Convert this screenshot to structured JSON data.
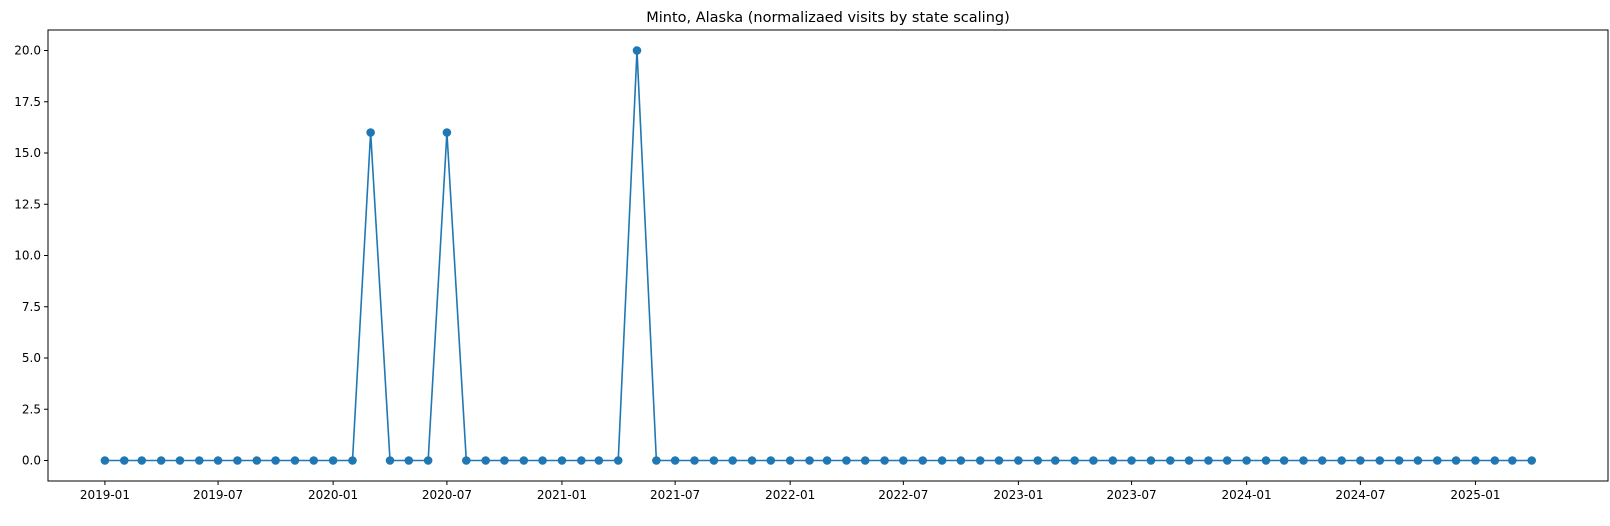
{
  "chart_data": {
    "type": "line",
    "title": "Minto, Alaska (normalizaed visits by state scaling)",
    "xlabel": "",
    "ylabel": "",
    "x": [
      "2019-01",
      "2019-02",
      "2019-03",
      "2019-04",
      "2019-05",
      "2019-06",
      "2019-07",
      "2019-08",
      "2019-09",
      "2019-10",
      "2019-11",
      "2019-12",
      "2020-01",
      "2020-02",
      "2020-03",
      "2020-04",
      "2020-05",
      "2020-06",
      "2020-07",
      "2020-08",
      "2020-09",
      "2020-10",
      "2020-11",
      "2020-12",
      "2021-01",
      "2021-02",
      "2021-03",
      "2021-04",
      "2021-05",
      "2021-06",
      "2021-07",
      "2021-08",
      "2021-09",
      "2021-10",
      "2021-11",
      "2021-12",
      "2022-01",
      "2022-02",
      "2022-03",
      "2022-04",
      "2022-05",
      "2022-06",
      "2022-07",
      "2022-08",
      "2022-09",
      "2022-10",
      "2022-11",
      "2022-12",
      "2023-01",
      "2023-02",
      "2023-03",
      "2023-04",
      "2023-05",
      "2023-06",
      "2023-07",
      "2023-08",
      "2023-09",
      "2023-10",
      "2023-11",
      "2023-12",
      "2024-01",
      "2024-02",
      "2024-03",
      "2024-04",
      "2024-05",
      "2024-06",
      "2024-07",
      "2024-08",
      "2024-09",
      "2024-10",
      "2024-11",
      "2024-12",
      "2025-01",
      "2025-02",
      "2025-03",
      "2025-04"
    ],
    "series": [
      {
        "color": "#1f77b4",
        "marker": "circle",
        "values": [
          0,
          0,
          0,
          0,
          0,
          0,
          0,
          0,
          0,
          0,
          0,
          0,
          0,
          0,
          16,
          0,
          0,
          0,
          16,
          0,
          0,
          0,
          0,
          0,
          0,
          0,
          0,
          0,
          20,
          0,
          0,
          0,
          0,
          0,
          0,
          0,
          0,
          0,
          0,
          0,
          0,
          0,
          0,
          0,
          0,
          0,
          0,
          0,
          0,
          0,
          0,
          0,
          0,
          0,
          0,
          0,
          0,
          0,
          0,
          0,
          0,
          0,
          0,
          0,
          0,
          0,
          0,
          0,
          0,
          0,
          0,
          0,
          0,
          0,
          0,
          0
        ]
      }
    ],
    "xlim": [
      "2018-10-02",
      "2025-08-01"
    ],
    "ylim": [
      -1.0,
      21.0
    ],
    "xticks": [
      "2019-01",
      "2019-07",
      "2020-01",
      "2020-07",
      "2021-01",
      "2021-07",
      "2022-01",
      "2022-07",
      "2023-01",
      "2023-07",
      "2024-01",
      "2024-07",
      "2025-01"
    ],
    "yticks": [
      0.0,
      2.5,
      5.0,
      7.5,
      10.0,
      12.5,
      15.0,
      17.5,
      20.0
    ],
    "ytick_labels": [
      "0.0",
      "2.5",
      "5.0",
      "7.5",
      "10.0",
      "12.5",
      "15.0",
      "17.5",
      "20.0"
    ],
    "grid": false,
    "legend": "none"
  }
}
